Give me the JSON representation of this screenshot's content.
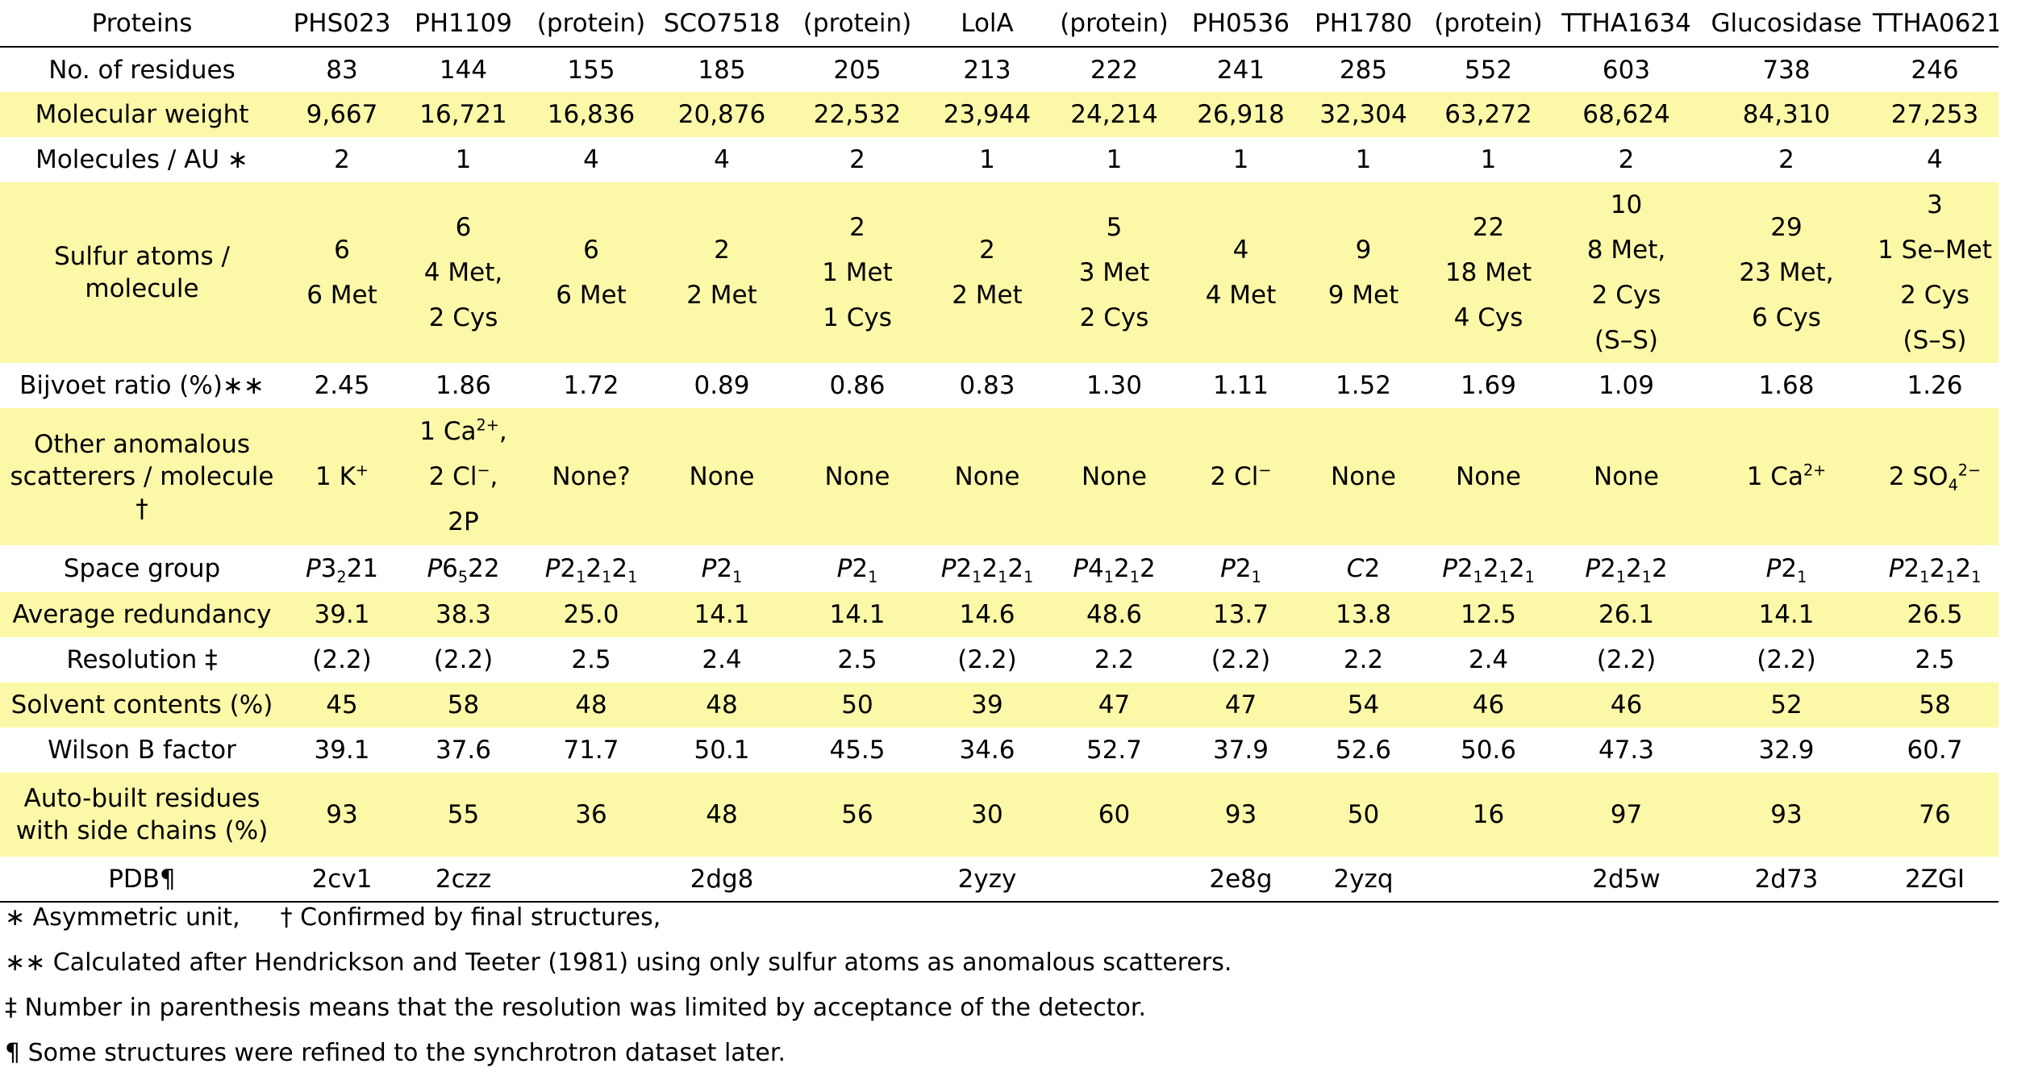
{
  "table": {
    "header": {
      "label": "Proteins",
      "proteins": [
        "PHS023",
        "PH1109",
        "(protein)",
        "SCO7518",
        "(protein)",
        "LolA",
        "(protein)",
        "PH0536",
        "PH1780",
        "(protein)",
        "TTHA1634",
        "Glucosidase",
        "TTHA0621"
      ]
    },
    "residues": {
      "label": "No. of residues",
      "values": [
        "83",
        "144",
        "155",
        "185",
        "205",
        "213",
        "222",
        "241",
        "285",
        "552",
        "603",
        "738",
        "246"
      ]
    },
    "mw": {
      "label": "Molecular weight",
      "values": [
        "9,667",
        "16,721",
        "16,836",
        "20,876",
        "22,532",
        "23,944",
        "24,214",
        "26,918",
        "32,304",
        "63,272",
        "68,624",
        "84,310",
        "27,253"
      ]
    },
    "molau": {
      "label": "Molecules / AU ∗",
      "values": [
        "2",
        "1",
        "4",
        "4",
        "2",
        "1",
        "1",
        "1",
        "1",
        "1",
        "2",
        "2",
        "4"
      ]
    },
    "sulfur": {
      "label": "Sulfur atoms / molecule",
      "values": [
        [
          "6",
          "6 Met"
        ],
        [
          "6",
          "4 Met,",
          "2 Cys"
        ],
        [
          "6",
          "6 Met"
        ],
        [
          "2",
          "2 Met"
        ],
        [
          "2",
          "1 Met",
          "1 Cys"
        ],
        [
          "2",
          "2 Met"
        ],
        [
          "5",
          "3 Met",
          "2 Cys"
        ],
        [
          "4",
          "4 Met"
        ],
        [
          "9",
          "9 Met"
        ],
        [
          "22",
          "18 Met",
          "4 Cys"
        ],
        [
          "10",
          "8 Met,",
          "2 Cys",
          "(S–S)"
        ],
        [
          "29",
          "23 Met,",
          "6 Cys"
        ],
        [
          "3",
          "1 Se–Met",
          "2 Cys",
          "(S–S)"
        ]
      ]
    },
    "bijvoet": {
      "label": "Bijvoet ratio (%)∗∗",
      "values": [
        "2.45",
        "1.86",
        "1.72",
        "0.89",
        "0.86",
        "0.83",
        "1.30",
        "1.11",
        "1.52",
        "1.69",
        "1.09",
        "1.68",
        "1.26"
      ]
    },
    "other": {
      "label": "Other anomalous scatterers / molecule †",
      "label_lines": [
        "Other anomalous",
        "scatterers / molecule",
        "†"
      ],
      "ph1109_lines": [
        "1 Ca",
        "2+",
        ",",
        "2 Cl",
        "−",
        ",",
        "2P"
      ],
      "phs023": {
        "base": "1 K",
        "sup": "+"
      },
      "ph0536": {
        "base": "2 Cl",
        "sup": "−"
      },
      "gluco": {
        "base": "1 Ca",
        "sup": "2+"
      },
      "ttha0621": {
        "base": "2 SO",
        "sub": "4",
        "sup": "2−"
      },
      "none_q": "None?",
      "none": "None"
    },
    "space": {
      "label": "Space group"
    },
    "redundancy": {
      "label": "Average redundancy",
      "values": [
        "39.1",
        "38.3",
        "25.0",
        "14.1",
        "14.1",
        "14.6",
        "48.6",
        "13.7",
        "13.8",
        "12.5",
        "26.1",
        "14.1",
        "26.5"
      ]
    },
    "resolution": {
      "label": "Resolution ‡",
      "values": [
        "(2.2)",
        "(2.2)",
        "2.5",
        "2.4",
        "2.5",
        "(2.2)",
        "2.2",
        "(2.2)",
        "2.2",
        "2.4",
        "(2.2)",
        "(2.2)",
        "2.5"
      ]
    },
    "solvent": {
      "label": "Solvent contents (%)",
      "values": [
        "45",
        "58",
        "48",
        "48",
        "50",
        "39",
        "47",
        "47",
        "54",
        "46",
        "46",
        "52",
        "58"
      ]
    },
    "wilson": {
      "label": "Wilson B factor",
      "values": [
        "39.1",
        "37.6",
        "71.7",
        "50.1",
        "45.5",
        "34.6",
        "52.7",
        "37.9",
        "52.6",
        "50.6",
        "47.3",
        "32.9",
        "60.7"
      ]
    },
    "autobuilt": {
      "label": "Auto-built residues with side chains (%)",
      "label_lines": [
        "Auto-built residues",
        "with side chains (%)"
      ],
      "values": [
        "93",
        "55",
        "36",
        "48",
        "56",
        "30",
        "60",
        "93",
        "50",
        "16",
        "97",
        "93",
        "76"
      ]
    },
    "pdb": {
      "label": "PDB¶",
      "values": [
        "2cv1",
        "2czz",
        "",
        "2dg8",
        "",
        "2yzy",
        "",
        "2e8g",
        "2yzq",
        "",
        "2d5w",
        "2d73",
        "2ZGI"
      ]
    }
  },
  "notes": {
    "n1a": "∗ Asymmetric unit,",
    "n1b": "† Confirmed by final structures,",
    "n2": "∗∗ Calculated after Hendrickson and Teeter (1981) using only sulfur atoms as anomalous scatterers.",
    "n3": "‡ Number in parenthesis means that the resolution was limited by acceptance of the detector.",
    "n4": "¶ Some structures were refined to the synchrotron dataset later."
  },
  "colors": {
    "highlight_row": "#fbf8a8",
    "plain_row": "#ffffff",
    "rule": "#000000"
  }
}
